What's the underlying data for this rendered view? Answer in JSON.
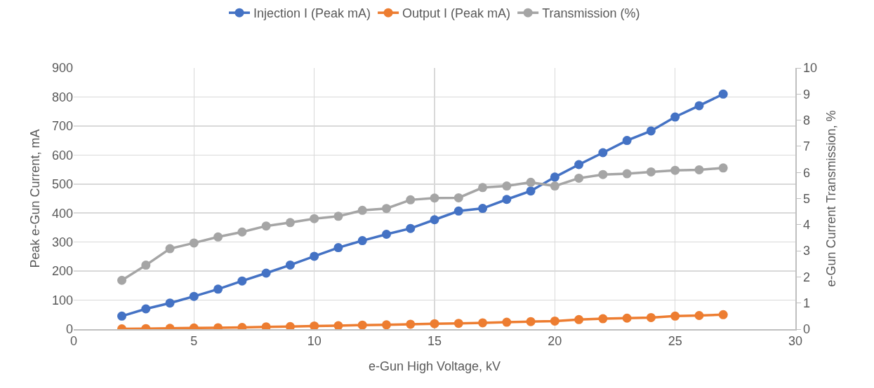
{
  "chart_data": {
    "type": "line",
    "xlabel": "e-Gun High Voltage, kV",
    "ylabel": "Peak e-Gun Current, mA",
    "y2label": "e-Gun Current Transmission, %",
    "x": [
      2,
      3,
      4,
      5,
      6,
      7,
      8,
      9,
      10,
      11,
      12,
      13,
      14,
      15,
      16,
      17,
      18,
      19,
      20,
      21,
      22,
      23,
      24,
      25,
      26,
      27
    ],
    "series": [
      {
        "name": "Injection I (Peak mA)",
        "color": "#4472c4",
        "values": [
          45,
          70,
          90,
          113,
          138,
          166,
          193,
          221,
          251,
          281,
          305,
          327,
          347,
          377,
          407,
          416,
          447,
          476,
          524,
          567,
          608,
          650,
          683,
          731,
          770,
          810
        ]
      },
      {
        "name": "Output I (Peak mA)",
        "color": "#ed7d31",
        "values": [
          1,
          2,
          3,
          4,
          5,
          6,
          8,
          9,
          11,
          12,
          14,
          15,
          17,
          19,
          20,
          22,
          24,
          26,
          28,
          33,
          36,
          38,
          40,
          45,
          47,
          50
        ]
      },
      {
        "name": "Transmission (%)",
        "color": "#a5a5a5",
        "axis": "y2",
        "values": [
          1.87,
          2.45,
          3.08,
          3.3,
          3.53,
          3.72,
          3.95,
          4.08,
          4.23,
          4.32,
          4.55,
          4.62,
          4.95,
          5.02,
          5.03,
          5.42,
          5.48,
          5.62,
          5.48,
          5.78,
          5.92,
          5.95,
          6.02,
          6.08,
          6.1,
          6.17
        ]
      }
    ],
    "xlim": [
      0,
      30
    ],
    "xticks": [
      0,
      5,
      10,
      15,
      20,
      25,
      30
    ],
    "ylim": [
      0,
      900
    ],
    "yticks": [
      0,
      100,
      200,
      300,
      400,
      500,
      600,
      700,
      800,
      900
    ],
    "y2lim": [
      0,
      10
    ],
    "y2ticks": [
      0,
      1,
      2,
      3,
      4,
      5,
      6,
      7,
      8,
      9,
      10
    ],
    "grid": true,
    "legend": "top",
    "marker": "circle",
    "line_style": "solid"
  }
}
